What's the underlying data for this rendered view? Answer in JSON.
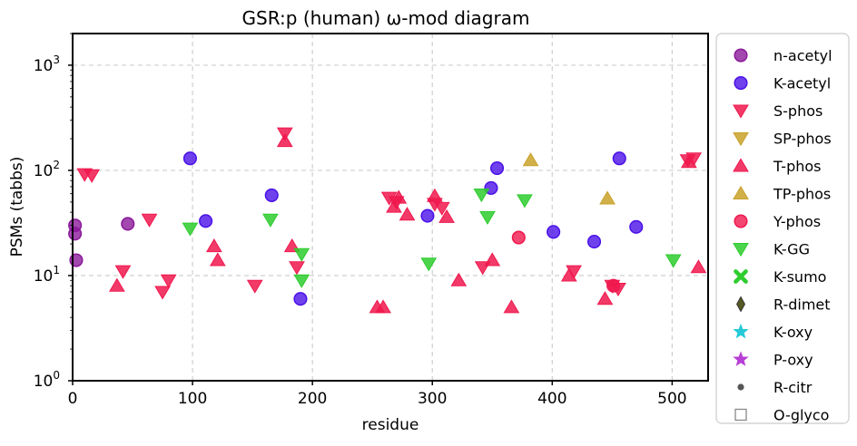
{
  "chart_data": {
    "type": "scatter",
    "title": "GSR:p (human) ω-mod diagram",
    "xlabel": "residue",
    "ylabel": "PSMs (tabbs)",
    "xlim": [
      0,
      530
    ],
    "ylim": [
      1,
      2000
    ],
    "y_scale": "log",
    "x_ticks": [
      0,
      100,
      200,
      300,
      400,
      500
    ],
    "y_ticks": [
      {
        "value": 1,
        "base": "10",
        "exp": "0"
      },
      {
        "value": 10,
        "base": "10",
        "exp": "1"
      },
      {
        "value": 100,
        "base": "10",
        "exp": "2"
      },
      {
        "value": 1000,
        "base": "10",
        "exp": "3"
      }
    ],
    "grid": true,
    "legend_position": "outside-right",
    "series": [
      {
        "name": "n-acetyl",
        "marker": "circle",
        "color": "#8b1a9a",
        "points": [
          [
            2,
            30
          ],
          [
            2,
            25
          ],
          [
            3,
            14
          ],
          [
            46,
            31
          ]
        ]
      },
      {
        "name": "K-acetyl",
        "marker": "circle",
        "color": "#4b12e8",
        "points": [
          [
            98,
            130
          ],
          [
            111,
            33
          ],
          [
            166,
            58
          ],
          [
            190,
            6
          ],
          [
            296,
            37
          ],
          [
            349,
            68
          ],
          [
            354,
            105
          ],
          [
            401,
            26
          ],
          [
            435,
            21
          ],
          [
            456,
            130
          ],
          [
            470,
            29
          ]
        ]
      },
      {
        "name": "S-phos",
        "marker": "triangle-down",
        "color": "#f0184e",
        "points": [
          [
            10,
            92
          ],
          [
            16,
            90
          ],
          [
            42,
            11
          ],
          [
            64,
            34
          ],
          [
            75,
            7
          ],
          [
            80,
            9
          ],
          [
            152,
            8
          ],
          [
            177,
            225
          ],
          [
            187,
            12
          ],
          [
            264,
            55
          ],
          [
            270,
            50
          ],
          [
            302,
            48
          ],
          [
            308,
            44
          ],
          [
            342,
            12
          ],
          [
            418,
            11
          ],
          [
            450,
            8
          ],
          [
            455,
            7.5
          ],
          [
            513,
            125
          ],
          [
            518,
            130
          ]
        ]
      },
      {
        "name": "SP-phos",
        "marker": "triangle-down",
        "color": "#c9a22a",
        "points": []
      },
      {
        "name": "T-phos",
        "marker": "triangle-up",
        "color": "#f0184e",
        "points": [
          [
            37,
            8
          ],
          [
            118,
            19
          ],
          [
            121,
            14
          ],
          [
            177,
            190
          ],
          [
            183,
            19
          ],
          [
            254,
            5
          ],
          [
            259,
            5
          ],
          [
            268,
            45
          ],
          [
            272,
            55
          ],
          [
            279,
            38
          ],
          [
            302,
            57
          ],
          [
            312,
            36
          ],
          [
            322,
            9
          ],
          [
            350,
            14
          ],
          [
            366,
            5
          ],
          [
            414,
            10
          ],
          [
            444,
            6
          ],
          [
            514,
            120
          ],
          [
            522,
            12
          ]
        ]
      },
      {
        "name": "TP-phos",
        "marker": "triangle-up",
        "color": "#c9a22a",
        "points": [
          [
            382,
            125
          ],
          [
            446,
            54
          ]
        ]
      },
      {
        "name": "Y-phos",
        "marker": "circle",
        "color": "#f0184e",
        "points": [
          [
            372,
            23
          ],
          [
            451,
            8
          ]
        ]
      },
      {
        "name": "K-GG",
        "marker": "triangle-down",
        "color": "#2ecc2e",
        "points": [
          [
            98,
            28
          ],
          [
            165,
            34
          ],
          [
            191,
            16
          ],
          [
            191,
            9
          ],
          [
            297,
            13
          ],
          [
            341,
            59
          ],
          [
            346,
            36
          ],
          [
            377,
            52
          ],
          [
            501,
            14
          ]
        ]
      },
      {
        "name": "K-sumo",
        "marker": "x",
        "color": "#2ecc2e",
        "points": []
      },
      {
        "name": "R-dimet",
        "marker": "diamond",
        "color": "#555a22",
        "points": []
      },
      {
        "name": "K-oxy",
        "marker": "star",
        "color": "#27c9d8",
        "points": []
      },
      {
        "name": "P-oxy",
        "marker": "star",
        "color": "#b83fd6",
        "points": []
      },
      {
        "name": "R-citr",
        "marker": "dot",
        "color": "#555555",
        "points": []
      },
      {
        "name": "O-glyco",
        "marker": "square-open",
        "color": "#555555",
        "points": []
      }
    ]
  }
}
